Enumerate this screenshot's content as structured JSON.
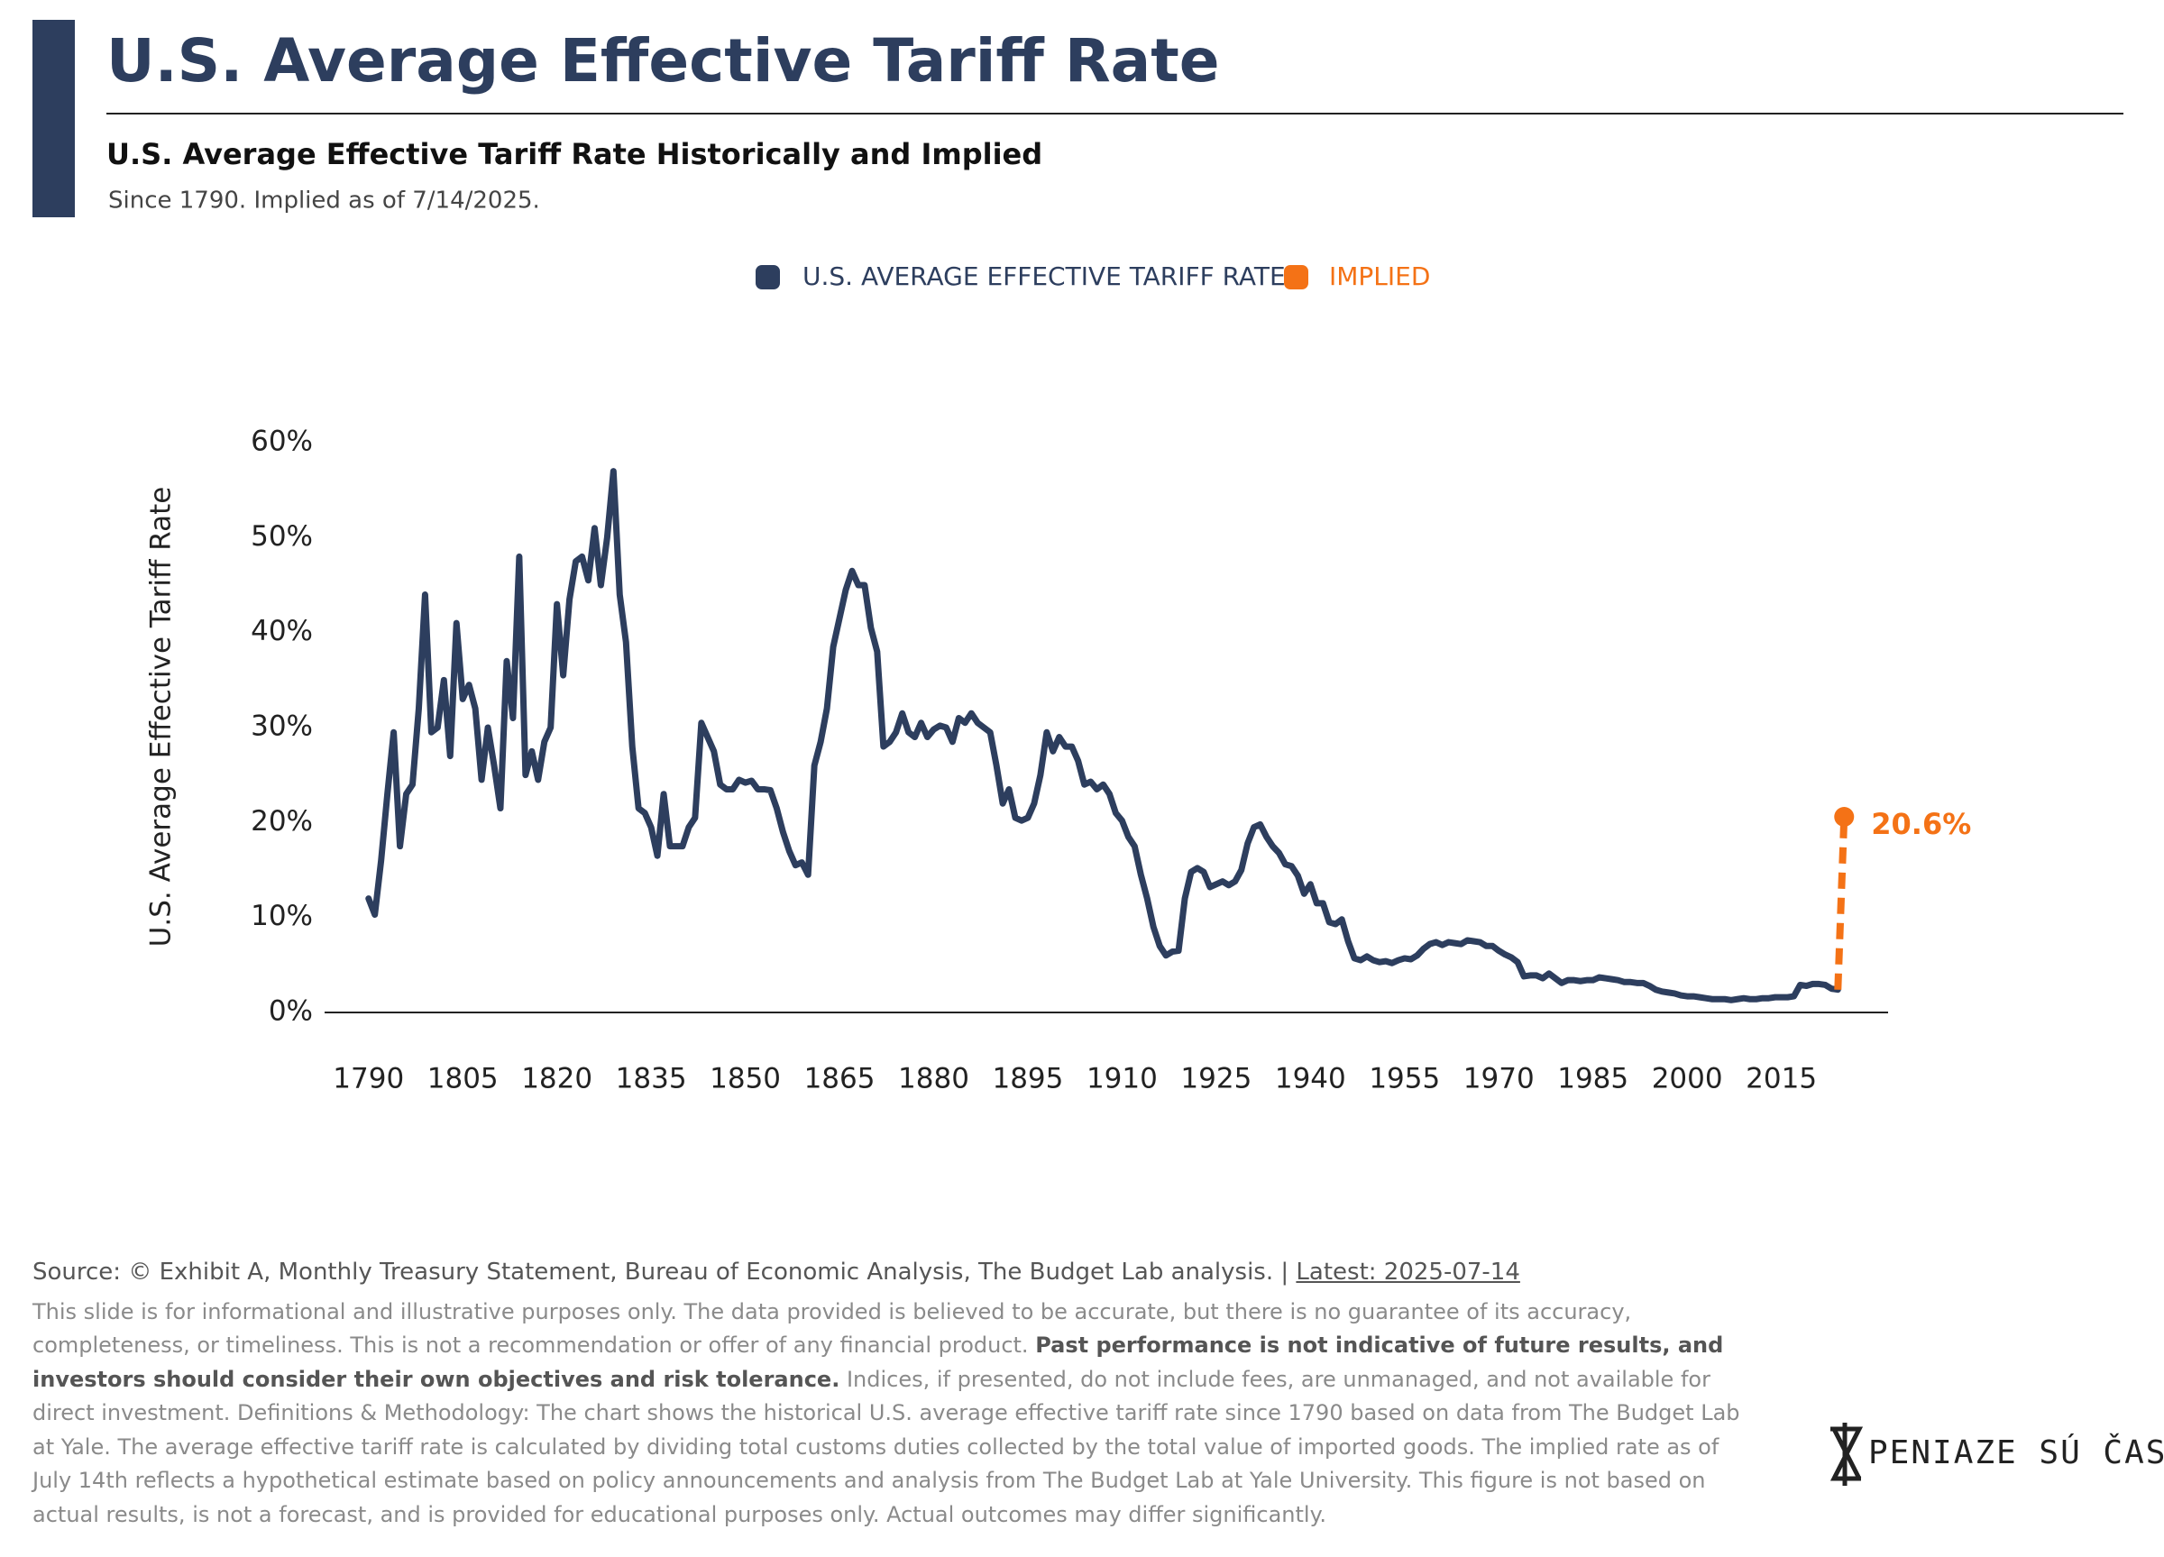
{
  "chart_data": {
    "type": "line",
    "title": "U.S. Average Effective Tariff Rate",
    "subtitle": "U.S. Average Effective Tariff Rate Historically and Implied",
    "note": "Since 1790. Implied as of 7/14/2025.",
    "y_label": "U.S. Average Effective Tariff Rate",
    "xlim": [
      1783,
      2032
    ],
    "xticks": [
      1790,
      1805,
      1820,
      1835,
      1850,
      1865,
      1880,
      1895,
      1910,
      1925,
      1940,
      1955,
      1970,
      1985,
      2000,
      2015
    ],
    "ylim": [
      0,
      60
    ],
    "yticks": [
      {
        "value": 0,
        "label": "0%"
      },
      {
        "value": 10,
        "label": "10%"
      },
      {
        "value": 20,
        "label": "20%"
      },
      {
        "value": 30,
        "label": "30%"
      },
      {
        "value": 40,
        "label": "40%"
      },
      {
        "value": 50,
        "label": "50%"
      },
      {
        "value": 60,
        "label": "60%"
      }
    ],
    "grid": false,
    "legend": "top",
    "series": [
      {
        "name": "U.S. AVERAGE EFFECTIVE TARIFF RATE",
        "color": "#2d3e5e",
        "x": [
          1790,
          1791,
          1792,
          1793,
          1794,
          1795,
          1796,
          1797,
          1798,
          1799,
          1800,
          1801,
          1802,
          1803,
          1804,
          1805,
          1806,
          1807,
          1808,
          1809,
          1810,
          1811,
          1812,
          1813,
          1814,
          1815,
          1816,
          1817,
          1818,
          1819,
          1820,
          1821,
          1822,
          1823,
          1824,
          1825,
          1826,
          1827,
          1828,
          1829,
          1830,
          1831,
          1832,
          1833,
          1834,
          1835,
          1836,
          1837,
          1838,
          1839,
          1840,
          1841,
          1842,
          1843,
          1844,
          1845,
          1846,
          1847,
          1848,
          1849,
          1850,
          1851,
          1852,
          1853,
          1854,
          1855,
          1856,
          1857,
          1858,
          1859,
          1860,
          1861,
          1862,
          1863,
          1864,
          1865,
          1866,
          1867,
          1868,
          1869,
          1870,
          1871,
          1872,
          1873,
          1874,
          1875,
          1876,
          1877,
          1878,
          1879,
          1880,
          1881,
          1882,
          1883,
          1884,
          1885,
          1886,
          1887,
          1888,
          1889,
          1890,
          1891,
          1892,
          1893,
          1894,
          1895,
          1896,
          1897,
          1898,
          1899,
          1900,
          1901,
          1902,
          1903,
          1904,
          1905,
          1906,
          1907,
          1908,
          1909,
          1910,
          1911,
          1912,
          1913,
          1914,
          1915,
          1916,
          1917,
          1918,
          1919,
          1920,
          1921,
          1922,
          1923,
          1924,
          1925,
          1926,
          1927,
          1928,
          1929,
          1930,
          1931,
          1932,
          1933,
          1934,
          1935,
          1936,
          1937,
          1938,
          1939,
          1940,
          1941,
          1942,
          1943,
          1944,
          1945,
          1946,
          1947,
          1948,
          1949,
          1950,
          1951,
          1952,
          1953,
          1954,
          1955,
          1956,
          1957,
          1958,
          1959,
          1960,
          1961,
          1962,
          1963,
          1964,
          1965,
          1966,
          1967,
          1968,
          1969,
          1970,
          1971,
          1972,
          1973,
          1974,
          1975,
          1976,
          1977,
          1978,
          1979,
          1980,
          1981,
          1982,
          1983,
          1984,
          1985,
          1986,
          1987,
          1988,
          1989,
          1990,
          1991,
          1992,
          1993,
          1994,
          1995,
          1996,
          1997,
          1998,
          1999,
          2000,
          2001,
          2002,
          2003,
          2004,
          2005,
          2006,
          2007,
          2008,
          2009,
          2010,
          2011,
          2012,
          2013,
          2014,
          2015,
          2016,
          2017,
          2018,
          2019,
          2020,
          2021,
          2022,
          2023,
          2024
        ],
        "values": [
          12,
          10.3,
          16,
          23,
          29.5,
          17.5,
          23,
          24,
          32,
          44,
          29.5,
          30,
          35,
          27,
          41,
          33,
          34.5,
          32,
          24.5,
          30,
          26,
          21.5,
          37,
          31,
          48,
          25,
          27.5,
          24.5,
          28.5,
          30,
          43,
          35.5,
          43.5,
          47.5,
          48,
          45.5,
          51,
          45,
          50,
          57,
          44,
          39,
          28,
          21.5,
          21,
          19.5,
          16.5,
          23,
          17.5,
          17.5,
          17.5,
          19.5,
          20.5,
          30.5,
          29,
          27.5,
          24,
          23.5,
          23.5,
          24.5,
          24.2,
          24.4,
          23.5,
          23.5,
          23.4,
          21.5,
          19,
          17,
          15.5,
          15.8,
          14.5,
          26,
          28.5,
          32,
          38.5,
          41.5,
          44.5,
          46.5,
          45,
          45,
          40.5,
          38,
          28,
          28.5,
          29.5,
          31.5,
          29.5,
          29,
          30.5,
          29,
          29.8,
          30.2,
          30,
          28.5,
          31,
          30.5,
          31.5,
          30.5,
          30,
          29.5,
          26,
          22,
          23.5,
          20.5,
          20.2,
          20.5,
          22,
          25,
          29.5,
          27.5,
          29,
          28,
          28,
          26.5,
          24,
          24.3,
          23.5,
          24,
          23,
          21,
          20.2,
          18.5,
          17.5,
          14.5,
          12,
          9,
          7,
          6,
          6.4,
          6.5,
          12,
          14.8,
          15.2,
          14.8,
          13.2,
          13.5,
          13.8,
          13.4,
          13.8,
          15,
          17.8,
          19.5,
          19.8,
          18.5,
          17.5,
          16.8,
          15.6,
          15.4,
          14.4,
          12.5,
          13.5,
          11.5,
          11.5,
          9.5,
          9.3,
          9.8,
          7.5,
          5.7,
          5.5,
          5.9,
          5.5,
          5.3,
          5.4,
          5.2,
          5.5,
          5.7,
          5.6,
          6,
          6.7,
          7.2,
          7.4,
          7.1,
          7.4,
          7.3,
          7.2,
          7.6,
          7.5,
          7.4,
          7,
          7,
          6.5,
          6.1,
          5.8,
          5.3,
          3.8,
          3.9,
          3.9,
          3.6,
          4.1,
          3.6,
          3.1,
          3.4,
          3.4,
          3.3,
          3.4,
          3.4,
          3.7,
          3.6,
          3.5,
          3.4,
          3.2,
          3.2,
          3.1,
          3.1,
          2.8,
          2.4,
          2.2,
          2.1,
          2,
          1.8,
          1.7,
          1.7,
          1.6,
          1.5,
          1.4,
          1.4,
          1.4,
          1.3,
          1.4,
          1.5,
          1.4,
          1.4,
          1.5,
          1.5,
          1.6,
          1.6,
          1.6,
          1.7,
          2.9,
          2.8,
          3.0,
          3.0,
          2.9,
          2.5,
          2.4
        ]
      },
      {
        "name": "IMPLIED",
        "color": "#f47216",
        "x": [
          2025
        ],
        "values": [
          20.6
        ],
        "value_labels": [
          "20.6%"
        ]
      }
    ],
    "source": "Source: © Exhibit A, Monthly Treasury Statement, Bureau of Economic Analysis, The Budget Lab analysis. |",
    "latest": "Latest: 2025-07-14",
    "disclaimer_1": "This slide is for informational and illustrative purposes only. The data provided is believed to be accurate, but there is no guarantee of its accuracy, completeness, or timeliness. This is not a recommendation or offer of any financial product.",
    "disclaimer_bold": "Past performance is not indicative of future results, and investors should consider their own objectives and risk tolerance.",
    "disclaimer_2": "Indices, if presented, do not include fees, are unmanaged, and not available for direct investment. Definitions & Methodology: The chart shows the historical U.S. average effective tariff rate since 1790 based on data from The Budget Lab at Yale. The average effective tariff rate is calculated by dividing total customs duties collected by the total value of imported goods. The implied rate as of July 14th reflects a hypothetical estimate based on policy announcements and analysis from The Budget Lab at Yale University. This figure is not based on actual results, is not a forecast, and is provided for educational purposes only. Actual outcomes may differ significantly.",
    "logo": "PENIAZE SÚ ČAS"
  }
}
